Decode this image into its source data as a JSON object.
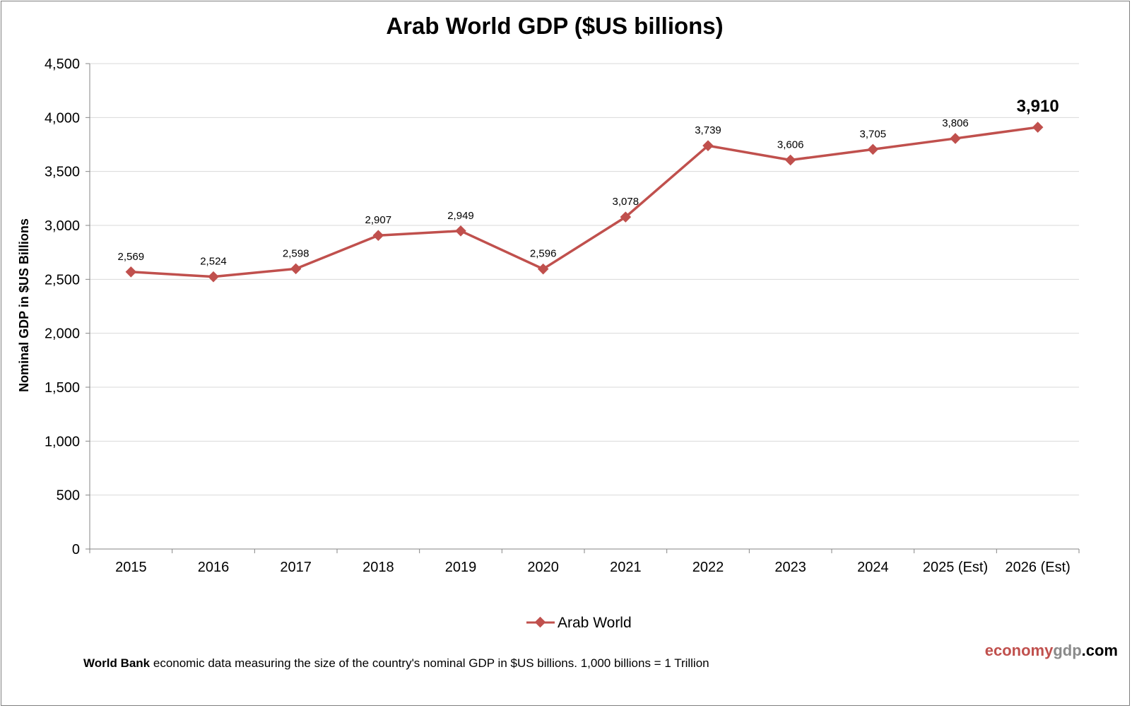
{
  "chart_data": {
    "type": "line",
    "title": "Arab World GDP ($US billions)",
    "xlabel": "",
    "ylabel": "Nominal GDP in $US Billions",
    "categories": [
      "2015",
      "2016",
      "2017",
      "2018",
      "2019",
      "2020",
      "2021",
      "2022",
      "2023",
      "2024",
      "2025 (Est)",
      "2026 (Est)"
    ],
    "series": [
      {
        "name": "Arab World",
        "color": "#c0504d",
        "values": [
          2569,
          2524,
          2598,
          2907,
          2949,
          2596,
          3078,
          3739,
          3606,
          3705,
          3806,
          3910
        ],
        "labels": [
          "2,569",
          "2,524",
          "2,598",
          "2,907",
          "2,949",
          "2,596",
          "3,078",
          "3,739",
          "3,606",
          "3,705",
          "3,806",
          "3,910"
        ]
      }
    ],
    "ylim": [
      0,
      4500
    ],
    "yticks": [
      0,
      500,
      1000,
      1500,
      2000,
      2500,
      3000,
      3500,
      4000,
      4500
    ],
    "ytick_labels": [
      "0",
      "500",
      "1,000",
      "1,500",
      "2,000",
      "2,500",
      "3,000",
      "3,500",
      "4,000",
      "4,500"
    ],
    "grid": true,
    "legend_position": "bottom"
  },
  "footer": {
    "source_bold": "World Bank",
    "source_text": " economic data  measuring  the size of the country's nominal  GDP in $US billions.  1,000 billions = 1 Trillion"
  },
  "brand": {
    "part1": "economy",
    "part2": "gdp",
    "part3": ".com"
  }
}
